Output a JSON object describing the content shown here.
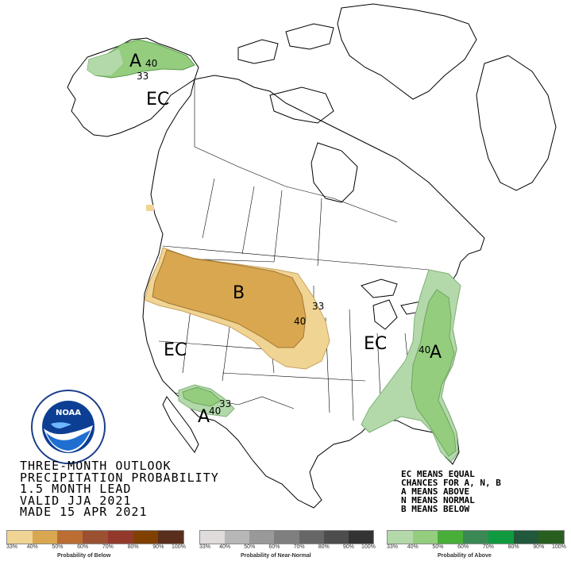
{
  "map": {
    "labels": {
      "ec_alaska": "EC",
      "a_alaska": "A",
      "n40_alaska": "40",
      "n33_alaska": "33",
      "b_northwest": "B",
      "n33_plains": "33",
      "n40_plains": "40",
      "ec_southwest": "EC",
      "ec_east": "EC",
      "a_east": "A",
      "n40_east": "40",
      "a_southwest": "A",
      "n40_southwest": "40",
      "n33_southwest": "33"
    },
    "region_colors": {
      "below_33": "#f0d493",
      "below_40": "#d8a750",
      "above_33": "#b3d9ab",
      "above_40": "#94cd7e"
    }
  },
  "outlook": {
    "line1": "THREE-MONTH OUTLOOK",
    "line2": "PRECIPITATION PROBABILITY",
    "line3": "1.5 MONTH LEAD",
    "line4": "VALID JJA 2021",
    "line5": "MADE 15 APR 2021"
  },
  "legend_note": {
    "line1": "EC MEANS EQUAL",
    "line2": "CHANCES FOR A, N, B",
    "line3": "A MEANS ABOVE",
    "line4": "N MEANS NORMAL",
    "line5": "B MEANS BELOW"
  },
  "colorbars": {
    "below": {
      "title": "Probability of Below",
      "ticks": [
        "33%",
        "40%",
        "50%",
        "60%",
        "70%",
        "80%",
        "90%",
        "100%"
      ],
      "colors": [
        "#f0d493",
        "#d8a750",
        "#bb6d33",
        "#9b5031",
        "#93392c",
        "#804000",
        "#5a2e1c"
      ]
    },
    "normal": {
      "title": "Probability of Near-Normal",
      "ticks": [
        "33%",
        "40%",
        "50%",
        "60%",
        "70%",
        "80%",
        "90%",
        "100%"
      ],
      "colors": [
        "#e0dcdc",
        "#b7b7b7",
        "#999999",
        "#7f7f7f",
        "#666666",
        "#4d4d4d",
        "#333333"
      ]
    },
    "above": {
      "title": "Probability of Above",
      "ticks": [
        "33%",
        "40%",
        "50%",
        "60%",
        "70%",
        "80%",
        "90%",
        "100%"
      ],
      "colors": [
        "#b3d9ab",
        "#94cd7e",
        "#48ae38",
        "#3a8955",
        "#0f9a3f",
        "#21573a",
        "#285f1f"
      ]
    }
  }
}
